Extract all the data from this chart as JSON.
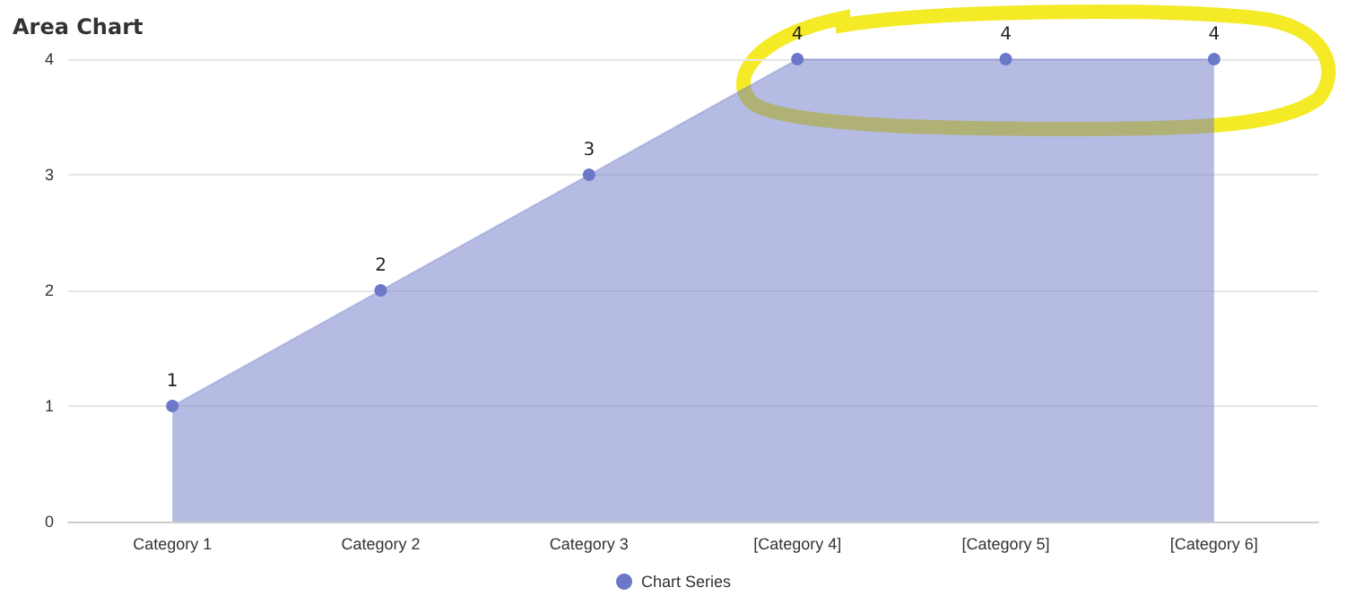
{
  "chart_data": {
    "type": "area",
    "title": "Area Chart",
    "categories": [
      "Category 1",
      "Category 2",
      "Category 3",
      "[Category 4]",
      "[Category 5]",
      "[Category 6]"
    ],
    "series": [
      {
        "name": "Chart Series",
        "color": "#6b78c8",
        "values": [
          1,
          2,
          3,
          4,
          4,
          4
        ]
      }
    ],
    "ylim": [
      0,
      4
    ],
    "yticks": [
      0,
      1,
      2,
      3,
      4
    ],
    "grid": "y",
    "legend": "bottom",
    "marker": "circle",
    "data_labels": true
  }
}
